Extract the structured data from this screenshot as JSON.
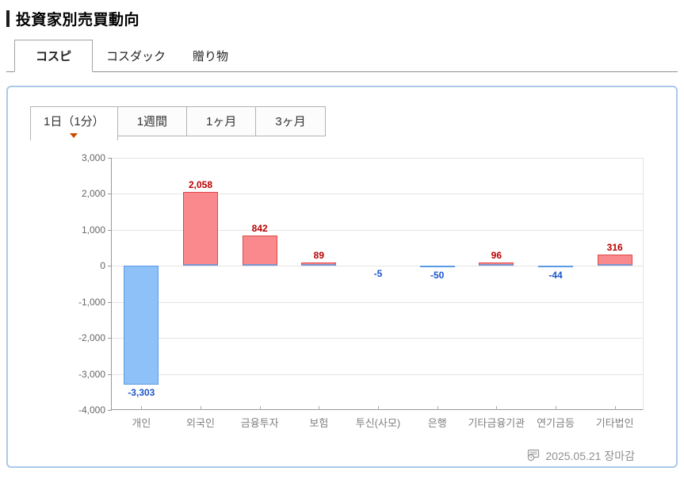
{
  "header": {
    "title": "投資家別売買動向"
  },
  "market_tabs": [
    {
      "label": "コスピ",
      "active": true
    },
    {
      "label": "コスダック",
      "active": false
    },
    {
      "label": "贈り物",
      "active": false
    }
  ],
  "period_tabs": [
    {
      "label": "1日（1分）",
      "active": true
    },
    {
      "label": "1週間",
      "active": false
    },
    {
      "label": "1ヶ月",
      "active": false
    },
    {
      "label": "3ヶ月",
      "active": false
    }
  ],
  "chart_data": {
    "type": "bar",
    "title": "",
    "xlabel": "",
    "ylabel": "",
    "categories": [
      "개인",
      "외국인",
      "금융투자",
      "보험",
      "투신(사모)",
      "은행",
      "기타금융기관",
      "연기금등",
      "기타법인"
    ],
    "values": [
      -3303,
      2058,
      842,
      89,
      -5,
      -50,
      96,
      -44,
      316
    ],
    "value_labels": [
      "-3,303",
      "2,058",
      "842",
      "89",
      "-5",
      "-50",
      "96",
      "-44",
      "316"
    ],
    "ylim": [
      -4000,
      3000
    ],
    "ytick_step": 1000,
    "ytick_labels": [
      "3,000",
      "2,000",
      "1,000",
      "0",
      "-1,000",
      "-2,000",
      "-3,000",
      "-4,000"
    ],
    "grid": true,
    "legend": "none",
    "colors": {
      "positive_fill": "#f9898c",
      "positive_border": "#e04848",
      "positive_label": "#bb0000",
      "positive_baseline": "#7d96cf",
      "negative_fill": "#8ec1f8",
      "negative_border": "#5b9be6",
      "negative_label": "#1a55cc"
    }
  },
  "footer": {
    "date_label": "2025.05.21 장마감",
    "icon": "board-clock-icon"
  },
  "theme": {
    "panel_border": "#abc9e8",
    "tab_indicator": "#cc4a00",
    "axis": "#999999",
    "gridline": "#e4e4e4"
  }
}
